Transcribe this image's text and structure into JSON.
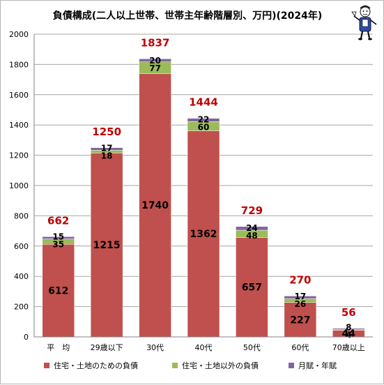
{
  "chart_data": {
    "type": "bar",
    "stacked": true,
    "title": "負債構成(二人以上世帯、世帯主年齢階層別、万円)(2024年)",
    "categories": [
      "平　均",
      "29歳以下",
      "30代",
      "40代",
      "50代",
      "60代",
      "70歳以上"
    ],
    "series": [
      {
        "name": "住宅・土地のための負債",
        "color": "#c0504d",
        "values": [
          612,
          1215,
          1740,
          1362,
          657,
          227,
          44
        ]
      },
      {
        "name": "住宅・土地以外の負債",
        "color": "#9bbb59",
        "values": [
          35,
          18,
          77,
          60,
          48,
          26,
          4
        ]
      },
      {
        "name": "月賦・年賦",
        "color": "#8064a2",
        "values": [
          15,
          17,
          20,
          22,
          24,
          17,
          8
        ]
      }
    ],
    "totals": [
      662,
      1250,
      1837,
      1444,
      729,
      270,
      56
    ],
    "totals_color": "#c00000",
    "ylim": [
      0,
      2000
    ],
    "yticks": [
      0,
      200,
      400,
      600,
      800,
      1000,
      1200,
      1400,
      1600,
      1800,
      2000
    ],
    "grid": true,
    "legend_position": "bottom",
    "mascot_icon": "mascot-figure-icon"
  }
}
